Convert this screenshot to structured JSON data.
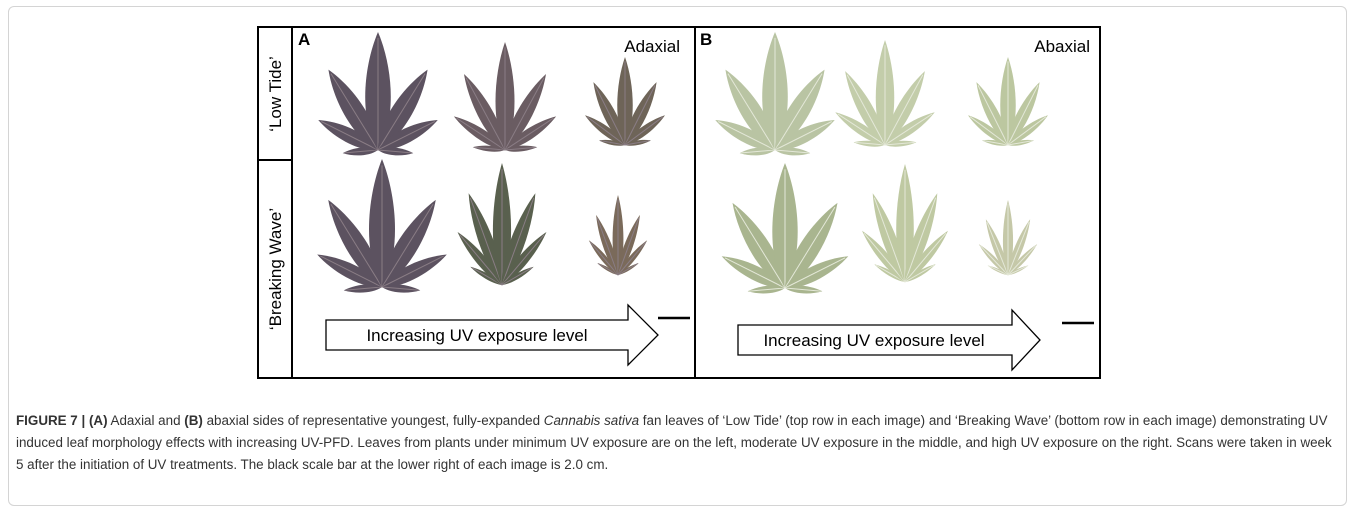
{
  "figure": {
    "row_labels": [
      "‘Low Tide’",
      "‘Breaking Wave’"
    ],
    "panels": [
      {
        "letter": "A",
        "side": "Adaxial",
        "arrow_text": "Increasing UV exposure level"
      },
      {
        "letter": "B",
        "side": "Abaxial",
        "arrow_text": "Increasing UV exposure level"
      }
    ]
  },
  "caption": {
    "label": "FIGURE 7 |",
    "part_a": "(A)",
    "text1": " Adaxial and ",
    "part_b": "(B)",
    "text2": " abaxial sides of representative youngest, fully-expanded ",
    "species": "Cannabis sativa",
    "text3": " fan leaves of ‘Low Tide’ (top row in each image) and ‘Breaking Wave’ (bottom row in each image) demonstrating UV induced leaf morphology effects with increasing UV-PFD. Leaves from plants under minimum UV exposure are on the left, moderate UV exposure in the middle, and high UV exposure on the right. Scans were taken in week 5 after the initiation of UV treatments. The black scale bar at the lower right of each image is 2.0 cm."
  }
}
